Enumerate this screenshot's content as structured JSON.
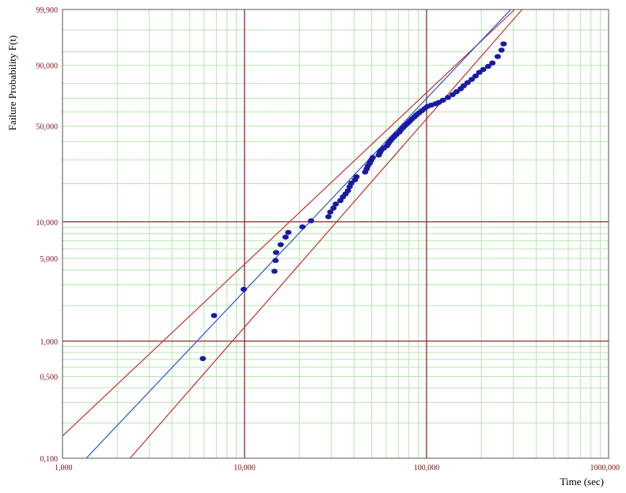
{
  "chart_data": {
    "type": "scatter",
    "title": "",
    "xlabel": "Time (sec)",
    "ylabel": "Failure Probability F(t)",
    "x_scale": "log",
    "y_scale": "weibull",
    "xlim": [
      1000,
      1000000
    ],
    "ylim": [
      0.1,
      99.9
    ],
    "grid": true,
    "x_ticks": [
      {
        "value": 1000,
        "label": "1,000"
      },
      {
        "value": 10000,
        "label": "10,000"
      },
      {
        "value": 100000,
        "label": "100,000"
      },
      {
        "value": 1000000,
        "label": "1000,000"
      }
    ],
    "y_ticks": [
      {
        "value": 0.1,
        "label": "0,100"
      },
      {
        "value": 0.5,
        "label": "0,500"
      },
      {
        "value": 1,
        "label": "1,000"
      },
      {
        "value": 5,
        "label": "5,000"
      },
      {
        "value": 10,
        "label": "10,000"
      },
      {
        "value": 50,
        "label": "50,000"
      },
      {
        "value": 90,
        "label": "90,000"
      },
      {
        "value": 99.9,
        "label": "99,900"
      }
    ],
    "colors": {
      "minor_grid": "#b7e6b0",
      "major_grid": "#8b2a2a",
      "tick_label": "#7a1010",
      "points": "#1a1aa0",
      "fit_line": "#2a55cc",
      "confidence_bounds": "#c03030",
      "frame": "#555555"
    },
    "points": [
      [
        5900,
        0.71
      ],
      [
        6800,
        1.65
      ],
      [
        9900,
        2.75
      ],
      [
        14600,
        3.9
      ],
      [
        14800,
        4.8
      ],
      [
        14900,
        5.6
      ],
      [
        15800,
        6.5
      ],
      [
        16800,
        7.5
      ],
      [
        17400,
        8.2
      ],
      [
        20800,
        9.1
      ],
      [
        23200,
        10.2
      ],
      [
        28900,
        11.0
      ],
      [
        29600,
        12.0
      ],
      [
        30800,
        12.9
      ],
      [
        31700,
        13.9
      ],
      [
        33600,
        14.8
      ],
      [
        34700,
        15.8
      ],
      [
        35900,
        16.7
      ],
      [
        37000,
        17.7
      ],
      [
        37800,
        19.0
      ],
      [
        38600,
        20.2
      ],
      [
        40400,
        21.4
      ],
      [
        41200,
        22.6
      ],
      [
        46000,
        24.5
      ],
      [
        46900,
        25.9
      ],
      [
        47600,
        27.2
      ],
      [
        48800,
        28.5
      ],
      [
        49600,
        29.8
      ],
      [
        50600,
        31.2
      ],
      [
        54600,
        32.5
      ],
      [
        55400,
        33.8
      ],
      [
        56300,
        35.0
      ],
      [
        58300,
        36.3
      ],
      [
        60600,
        37.6
      ],
      [
        61700,
        38.9
      ],
      [
        62900,
        40.2
      ],
      [
        64300,
        41.5
      ],
      [
        66300,
        43.0
      ],
      [
        68300,
        44.5
      ],
      [
        70800,
        46.0
      ],
      [
        72300,
        47.5
      ],
      [
        74200,
        49.0
      ],
      [
        76300,
        50.5
      ],
      [
        78700,
        52.0
      ],
      [
        80900,
        53.5
      ],
      [
        83100,
        55.0
      ],
      [
        85700,
        56.5
      ],
      [
        88100,
        58.0
      ],
      [
        91200,
        59.5
      ],
      [
        94200,
        61.0
      ],
      [
        97600,
        62.5
      ],
      [
        101000,
        64.0
      ],
      [
        106000,
        65.0
      ],
      [
        112000,
        66.0
      ],
      [
        117000,
        67.0
      ],
      [
        123000,
        68.5
      ],
      [
        131000,
        70.5
      ],
      [
        139000,
        72.5
      ],
      [
        146000,
        74.5
      ],
      [
        154000,
        76.5
      ],
      [
        160000,
        78.5
      ],
      [
        168000,
        80.5
      ],
      [
        177000,
        82.5
      ],
      [
        186000,
        84.5
      ],
      [
        195000,
        86.5
      ],
      [
        205000,
        88.0
      ],
      [
        218000,
        89.5
      ],
      [
        230000,
        91.0
      ],
      [
        246000,
        93.5
      ],
      [
        258000,
        95.5
      ],
      [
        265000,
        97.0
      ]
    ],
    "fit_line": [
      [
        1350,
        0.1
      ],
      [
        290000,
        99.9
      ]
    ],
    "upper_bound": [
      [
        1000,
        0.155
      ],
      [
        305000,
        99.9
      ]
    ],
    "lower_bound": [
      [
        2350,
        0.1
      ],
      [
        335000,
        99.9
      ]
    ]
  }
}
